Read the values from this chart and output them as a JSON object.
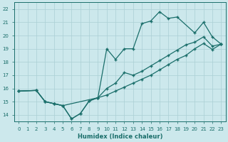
{
  "xlabel": "Humidex (Indice chaleur)",
  "ylabel": "",
  "bg_color": "#cce8ec",
  "grid_color": "#aacfd4",
  "line_color": "#1a6e6a",
  "xlim": [
    -0.5,
    23.5
  ],
  "ylim": [
    13.5,
    22.5
  ],
  "yticks": [
    14,
    15,
    16,
    17,
    18,
    19,
    20,
    21,
    22
  ],
  "xticks": [
    0,
    1,
    2,
    3,
    4,
    5,
    6,
    7,
    8,
    9,
    10,
    11,
    12,
    13,
    14,
    15,
    16,
    17,
    18,
    19,
    20,
    21,
    22,
    23
  ],
  "line1_x": [
    0,
    2,
    3,
    4,
    5,
    9,
    10,
    11,
    12,
    13,
    14,
    15,
    16,
    17,
    18,
    19,
    20,
    21,
    22,
    23
  ],
  "line1_y": [
    15.8,
    15.85,
    15.0,
    14.85,
    14.7,
    15.3,
    15.5,
    15.8,
    16.1,
    16.4,
    16.7,
    17.0,
    17.4,
    17.8,
    18.2,
    18.5,
    19.0,
    19.4,
    18.95,
    19.35
  ],
  "line2_x": [
    0,
    2,
    3,
    4,
    5,
    6,
    7,
    8,
    9,
    10,
    11,
    12,
    13,
    14,
    15,
    16,
    17,
    18,
    20,
    21,
    22,
    23
  ],
  "line2_y": [
    15.8,
    15.85,
    15.0,
    14.85,
    14.7,
    13.7,
    14.1,
    15.05,
    15.3,
    19.0,
    18.2,
    19.0,
    19.0,
    20.9,
    21.1,
    21.8,
    21.3,
    21.4,
    20.2,
    21.0,
    19.9,
    19.35
  ],
  "line3_x": [
    0,
    2,
    3,
    4,
    5,
    6,
    7,
    8,
    9,
    10,
    11,
    12,
    13,
    14,
    15,
    16,
    17,
    18,
    19,
    20,
    21,
    22,
    23
  ],
  "line3_y": [
    15.8,
    15.85,
    15.0,
    14.85,
    14.7,
    13.7,
    14.1,
    15.05,
    15.3,
    16.0,
    16.4,
    17.2,
    17.0,
    17.3,
    17.7,
    18.1,
    18.5,
    18.9,
    19.3,
    19.5,
    19.9,
    19.2,
    19.35
  ]
}
